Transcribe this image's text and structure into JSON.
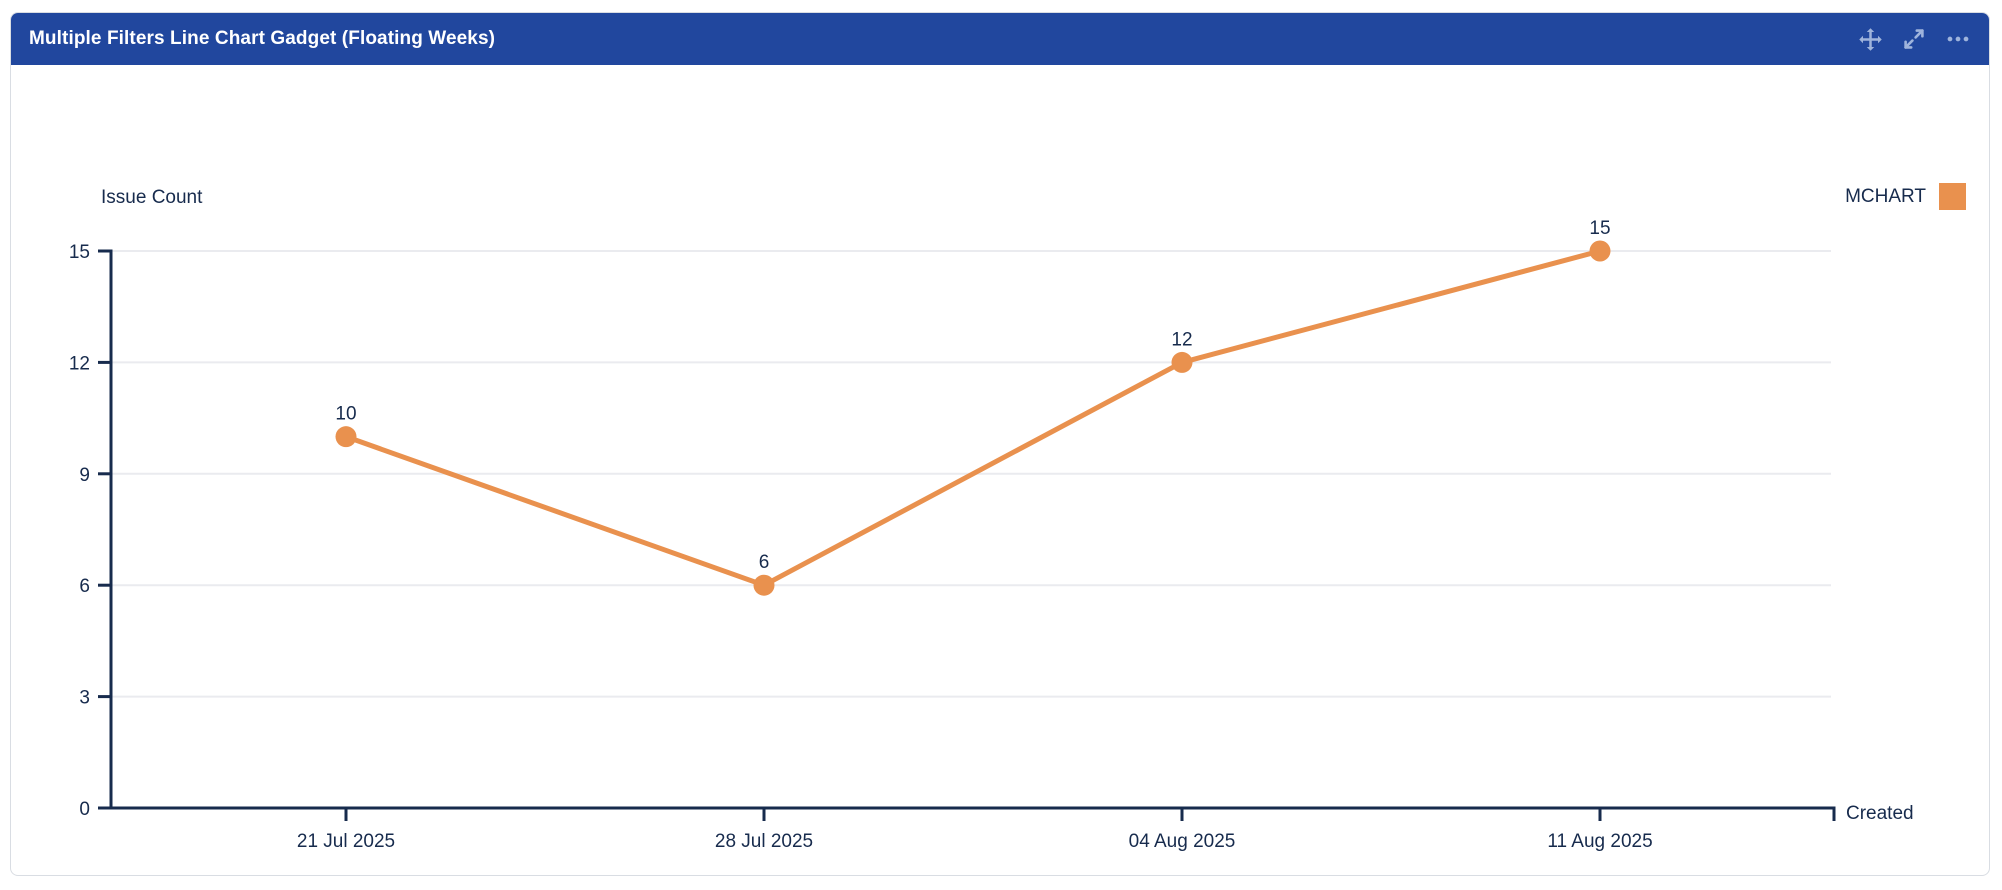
{
  "header": {
    "title": "Multiple Filters Line Chart Gadget (Floating Weeks)",
    "icons": [
      {
        "name": "move-icon"
      },
      {
        "name": "expand-icon"
      },
      {
        "name": "more-icon"
      }
    ]
  },
  "chart_data": {
    "type": "line",
    "ylabel": "Issue Count",
    "xlabel": "Created",
    "categories": [
      "21 Jul 2025",
      "28 Jul 2025",
      "04 Aug 2025",
      "11 Aug 2025"
    ],
    "series": [
      {
        "name": "MCHART",
        "values": [
          10,
          6,
          12,
          15
        ],
        "color": "#E9914E"
      }
    ],
    "ylim": [
      0,
      15
    ],
    "yticks": [
      0,
      3,
      6,
      9,
      12,
      15
    ],
    "grid": true,
    "legend_position": "top-right",
    "data_labels": [
      10,
      6,
      12,
      15
    ]
  },
  "colors": {
    "header_bg": "#21479E",
    "header_icon": "#9FB4DC",
    "series_orange": "#E9914E",
    "axis_navy": "#172B4D",
    "gridline": "#EAEBEF"
  }
}
